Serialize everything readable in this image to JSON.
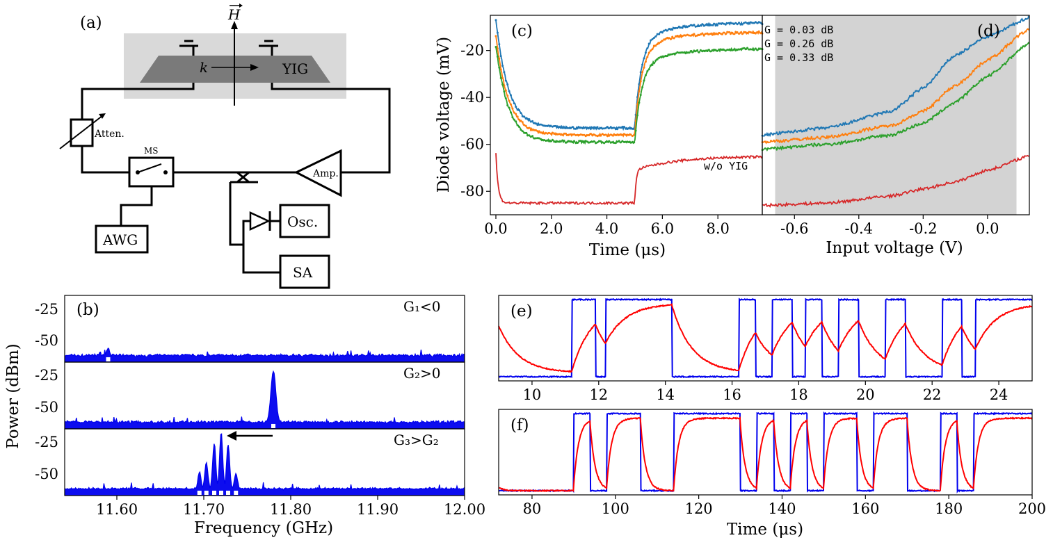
{
  "panels": {
    "a": {
      "label": "(a)",
      "field_label": "H",
      "k_label": "k",
      "yig_label": "YIG",
      "atten_label": "Atten.",
      "ms_label": "MS",
      "amp_label": "Amp.",
      "awg_label": "AWG",
      "osc_label": "Osc.",
      "sa_label": "SA"
    },
    "b": {
      "label": "(b)",
      "ylabel": "Power (dBm)",
      "xlabel": "Frequency (GHz)",
      "xticks": [
        "11.60",
        "11.70",
        "11.80",
        "11.90",
        "12.00"
      ],
      "yticks": [
        "-25",
        "-50"
      ],
      "sub_labels": [
        "G₁<0",
        "G₂>0",
        "G₃>G₂"
      ]
    },
    "c": {
      "label": "(c)",
      "ylabel": "Diode voltage (mV)",
      "xlabel": "Time (μs)",
      "xticks": [
        "0.0",
        "2.0",
        "4.0",
        "6.0",
        "8.0"
      ],
      "yticks": [
        "-20",
        "-40",
        "-60",
        "-80"
      ],
      "annotation": "w/o YIG"
    },
    "d": {
      "label": "(d)",
      "xlabel": "Input voltage (V)",
      "xticks": [
        "-0.6",
        "-0.4",
        "-0.2",
        "0.0"
      ],
      "legend": [
        "G = 0.03 dB",
        "G = 0.26 dB",
        "G = 0.33 dB"
      ]
    },
    "e": {
      "label": "(e)",
      "xticks": [
        "10",
        "12",
        "14",
        "16",
        "18",
        "20",
        "22",
        "24"
      ]
    },
    "f": {
      "label": "(f)",
      "xlabel": "Time (μs)",
      "xticks": [
        "80",
        "100",
        "120",
        "140",
        "160",
        "180",
        "200"
      ]
    }
  },
  "colors": {
    "blue": "#1f77b4",
    "orange": "#ff7f0e",
    "green": "#2ca02c",
    "red": "#d62728",
    "spec_blue": "#0000ee",
    "trace_red": "#ff0000",
    "shade": "#d3d3d3",
    "yig_dark": "#7a7a7a"
  },
  "chart_data": [
    {
      "panel": "b",
      "type": "line",
      "x_unit": "GHz",
      "y_unit": "dBm",
      "xlim": [
        11.54,
        12.0
      ],
      "ylim": [
        -68,
        -15
      ],
      "series": [
        {
          "sub": "G1<0",
          "noise_floor": -63,
          "peaks": [
            {
              "x": 11.59,
              "y": -57
            }
          ]
        },
        {
          "sub": "G2>0",
          "noise_floor": -63,
          "peaks": [
            {
              "x": 11.78,
              "y": -22
            }
          ]
        },
        {
          "sub": "G3>G2",
          "noise_floor": -63,
          "peaks": [
            {
              "x": 11.695,
              "y": -49
            },
            {
              "x": 11.703,
              "y": -42
            },
            {
              "x": 11.712,
              "y": -26
            },
            {
              "x": 11.72,
              "y": -18
            },
            {
              "x": 11.728,
              "y": -27
            },
            {
              "x": 11.737,
              "y": -50
            }
          ]
        }
      ]
    },
    {
      "panel": "c",
      "type": "line",
      "x_unit": "us",
      "y_unit": "mV",
      "xlim": [
        -0.2,
        9.6
      ],
      "ylim": [
        -90,
        -5
      ],
      "grid": false,
      "series": [
        {
          "color": "blue",
          "y_start": -7,
          "y_low": -53,
          "y_high": -8
        },
        {
          "color": "orange",
          "y_start": -14,
          "y_low": -56,
          "y_high": -12
        },
        {
          "color": "green",
          "y_start": -18,
          "y_low": -59,
          "y_high": -19
        },
        {
          "color": "red",
          "y_start": -64,
          "y_low": -85,
          "y_high": -65
        }
      ],
      "step_time_us": 5.0
    },
    {
      "panel": "d",
      "type": "line",
      "x_unit": "V",
      "xlim": [
        -0.7,
        0.13
      ],
      "ylim": [
        -90,
        -5
      ],
      "shaded_region": [
        -0.66,
        0.09
      ],
      "series": [
        {
          "color": "blue",
          "points": [
            [
              -0.7,
              -56
            ],
            [
              -0.5,
              -53
            ],
            [
              -0.3,
              -46
            ],
            [
              -0.2,
              -36
            ],
            [
              -0.1,
              -22
            ],
            [
              0.0,
              -14
            ],
            [
              0.13,
              -6
            ]
          ]
        },
        {
          "color": "orange",
          "points": [
            [
              -0.7,
              -59
            ],
            [
              -0.5,
              -57
            ],
            [
              -0.3,
              -52
            ],
            [
              -0.2,
              -46
            ],
            [
              -0.1,
              -35
            ],
            [
              0.0,
              -24
            ],
            [
              0.13,
              -11
            ]
          ]
        },
        {
          "color": "green",
          "points": [
            [
              -0.7,
              -62
            ],
            [
              -0.5,
              -60
            ],
            [
              -0.3,
              -56
            ],
            [
              -0.2,
              -51
            ],
            [
              -0.1,
              -42
            ],
            [
              0.0,
              -31
            ],
            [
              0.13,
              -17
            ]
          ]
        },
        {
          "color": "red",
          "points": [
            [
              -0.7,
              -86
            ],
            [
              -0.5,
              -85
            ],
            [
              -0.3,
              -82
            ],
            [
              -0.2,
              -79
            ],
            [
              -0.1,
              -76
            ],
            [
              0.0,
              -71
            ],
            [
              0.13,
              -65
            ]
          ]
        }
      ]
    },
    {
      "panel": "e",
      "type": "line",
      "x_unit": "us",
      "xlim": [
        9,
        25
      ],
      "blue_on_intervals": [
        [
          11.2,
          11.9
        ],
        [
          12.2,
          14.2
        ],
        [
          16.2,
          16.7
        ],
        [
          17.2,
          17.8
        ],
        [
          18.2,
          18.7
        ],
        [
          19.2,
          19.8
        ],
        [
          20.6,
          21.2
        ],
        [
          22.3,
          22.9
        ],
        [
          23.3,
          25
        ]
      ],
      "red_time_constant_us": 0.6
    },
    {
      "panel": "f",
      "type": "line",
      "x_unit": "us",
      "xlim": [
        72,
        200
      ],
      "blue_on_intervals": [
        [
          90,
          94
        ],
        [
          98,
          106
        ],
        [
          114,
          130
        ],
        [
          134,
          138
        ],
        [
          142,
          146
        ],
        [
          150,
          158
        ],
        [
          162,
          170
        ],
        [
          178,
          182
        ],
        [
          186,
          200
        ]
      ],
      "red_time_constant_us": 1.2
    }
  ]
}
